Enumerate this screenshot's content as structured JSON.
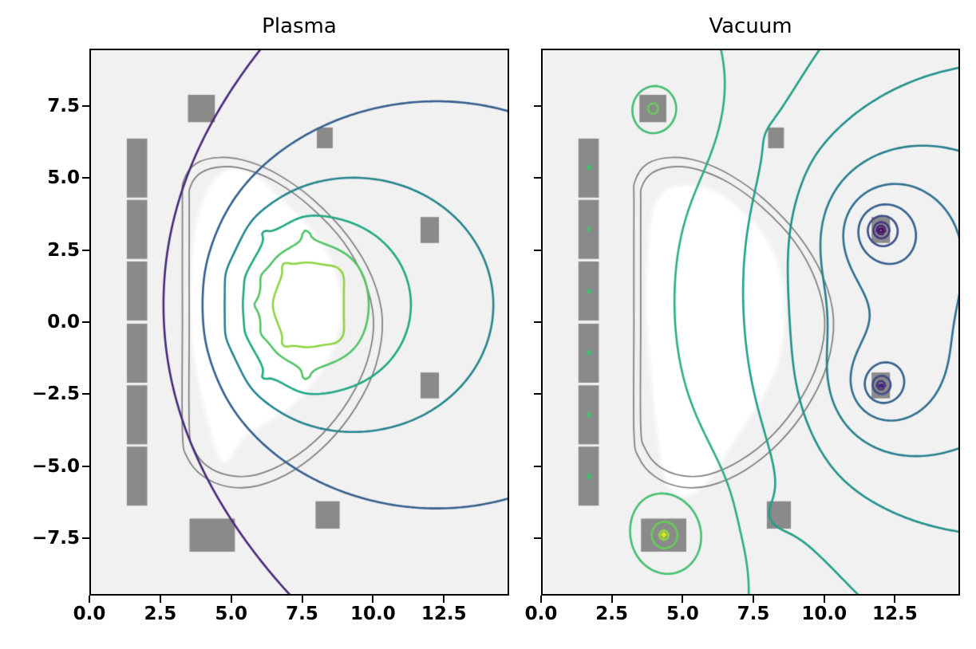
{
  "figure": {
    "background": "#ffffff"
  },
  "chart_data": {
    "type": "contour",
    "colormap": "viridis",
    "xlim": [
      0,
      14.8
    ],
    "ylim": [
      -9.5,
      9.5
    ],
    "grid": true,
    "legend": "none",
    "x_tick_values": [
      0,
      2.5,
      5,
      7.5,
      10,
      12.5
    ],
    "x_tick_labels": [
      "0.0",
      "2.5",
      "5.0",
      "7.5",
      "10.0",
      "12.5"
    ],
    "y_tick_values": [
      7.5,
      5,
      2.5,
      0,
      -2.5,
      -5,
      -7.5
    ],
    "y_tick_labels": [
      "7.5",
      "5.0",
      "2.5",
      "0.0",
      "−2.5",
      "−5.0",
      "−7.5"
    ],
    "panels": [
      {
        "title": "Plasma",
        "field": "plasma",
        "level_fractions": [
          0.12,
          0.3,
          0.45,
          0.6,
          0.73,
          0.83
        ],
        "y_tick_labels_shown": true
      },
      {
        "title": "Vacuum",
        "field": "vacuum",
        "level_count": 15,
        "y_tick_labels_shown": false
      }
    ],
    "machine": {
      "solenoid_segments": [
        {
          "r": 1.68,
          "z": 5.35,
          "w": 0.72,
          "h": 2.05
        },
        {
          "r": 1.68,
          "z": 3.22,
          "w": 0.72,
          "h": 2.05
        },
        {
          "r": 1.68,
          "z": 1.08,
          "w": 0.72,
          "h": 2.05
        },
        {
          "r": 1.68,
          "z": -1.08,
          "w": 0.72,
          "h": 2.05
        },
        {
          "r": 1.68,
          "z": -3.22,
          "w": 0.72,
          "h": 2.05
        },
        {
          "r": 1.68,
          "z": -5.35,
          "w": 0.72,
          "h": 2.05
        }
      ],
      "pf_coils": [
        {
          "name": "upper-left",
          "r": 3.95,
          "z": 7.42,
          "w": 0.95,
          "h": 0.95
        },
        {
          "name": "upper-mid",
          "r": 8.3,
          "z": 6.4,
          "w": 0.56,
          "h": 0.72
        },
        {
          "name": "upper-right",
          "r": 12.0,
          "z": 3.2,
          "w": 0.65,
          "h": 0.9
        },
        {
          "name": "lower-right",
          "r": 12.0,
          "z": -2.2,
          "w": 0.65,
          "h": 0.9
        },
        {
          "name": "lower-mid",
          "r": 8.4,
          "z": -6.7,
          "w": 0.85,
          "h": 0.95
        },
        {
          "name": "lower-left",
          "r": 4.33,
          "z": -7.4,
          "w": 1.6,
          "h": 1.15
        }
      ],
      "wall_outer": [
        [
          3.28,
          4.1
        ],
        [
          3.32,
          4.9
        ],
        [
          3.75,
          5.5
        ],
        [
          4.6,
          5.72
        ],
        [
          5.6,
          5.58
        ],
        [
          6.7,
          5.1
        ],
        [
          7.9,
          4.25
        ],
        [
          9.1,
          3.0
        ],
        [
          9.95,
          1.6
        ],
        [
          10.33,
          0.1
        ],
        [
          10.1,
          -1.5
        ],
        [
          9.4,
          -2.95
        ],
        [
          8.4,
          -4.2
        ],
        [
          7.2,
          -5.15
        ],
        [
          5.95,
          -5.68
        ],
        [
          4.9,
          -5.72
        ],
        [
          4.0,
          -5.35
        ],
        [
          3.45,
          -4.7
        ],
        [
          3.28,
          -3.8
        ],
        [
          3.28,
          0.0
        ]
      ],
      "wall_inner": [
        [
          3.52,
          3.95
        ],
        [
          3.56,
          4.7
        ],
        [
          3.95,
          5.2
        ],
        [
          4.7,
          5.4
        ],
        [
          5.6,
          5.28
        ],
        [
          6.65,
          4.83
        ],
        [
          7.8,
          4.0
        ],
        [
          8.95,
          2.8
        ],
        [
          9.7,
          1.45
        ],
        [
          10.02,
          0.05
        ],
        [
          9.8,
          -1.35
        ],
        [
          9.15,
          -2.7
        ],
        [
          8.2,
          -3.9
        ],
        [
          7.05,
          -4.8
        ],
        [
          5.9,
          -5.3
        ],
        [
          4.95,
          -5.33
        ],
        [
          4.15,
          -5.0
        ],
        [
          3.68,
          -4.4
        ],
        [
          3.52,
          -3.6
        ],
        [
          3.52,
          0.0
        ]
      ]
    },
    "vacuum_currents": {
      "solenoid": 60,
      "upper-left": 70,
      "upper-mid": -6,
      "upper-right": -55,
      "lower-right": -45,
      "lower-mid": -14,
      "lower-left": 90
    },
    "plasma_axis": [
      6.9,
      0.6
    ],
    "plasma_filaments": [
      [
        6.9,
        0.6,
        1.5
      ],
      [
        7.9,
        0.6,
        1
      ],
      [
        7.607,
        1.555,
        1
      ],
      [
        6.9,
        1.95,
        1
      ],
      [
        6.193,
        1.555,
        1
      ],
      [
        5.9,
        0.6,
        1
      ],
      [
        6.193,
        -0.355,
        1
      ],
      [
        6.9,
        -0.75,
        1
      ],
      [
        7.607,
        -0.355,
        1
      ],
      [
        8.656,
        1.634,
        1
      ],
      [
        7.628,
        3.095,
        1
      ],
      [
        6.172,
        3.095,
        1
      ],
      [
        5.144,
        1.634,
        1
      ],
      [
        5.144,
        -0.434,
        1
      ],
      [
        6.172,
        -1.895,
        1
      ],
      [
        7.628,
        -1.895,
        1
      ],
      [
        8.656,
        -0.434,
        1
      ]
    ],
    "plasma_region_outline": {
      "plasma_panel": [
        [
          3.62,
          0.3
        ],
        [
          3.66,
          2.2
        ],
        [
          3.95,
          3.9
        ],
        [
          4.5,
          4.95
        ],
        [
          5.2,
          5.3
        ],
        [
          5.9,
          5.0
        ],
        [
          6.6,
          4.35
        ],
        [
          7.5,
          3.5
        ],
        [
          8.3,
          2.45
        ],
        [
          8.75,
          1.3
        ],
        [
          8.82,
          0.2
        ],
        [
          8.5,
          -1.0
        ],
        [
          7.9,
          -2.0
        ],
        [
          7.1,
          -2.85
        ],
        [
          6.3,
          -3.4
        ],
        [
          5.6,
          -3.8
        ],
        [
          5.15,
          -4.3
        ],
        [
          4.8,
          -4.85
        ],
        [
          4.55,
          -4.5
        ],
        [
          4.2,
          -3.3
        ],
        [
          3.85,
          -1.8
        ],
        [
          3.68,
          -0.7
        ]
      ],
      "vacuum_panel": [
        [
          3.78,
          0.3
        ],
        [
          3.82,
          2.3
        ],
        [
          4.0,
          3.8
        ],
        [
          4.45,
          4.55
        ],
        [
          5.3,
          4.68
        ],
        [
          6.3,
          4.42
        ],
        [
          7.0,
          3.85
        ],
        [
          7.7,
          3.15
        ],
        [
          8.2,
          2.3
        ],
        [
          8.5,
          1.2
        ],
        [
          8.55,
          0.0
        ],
        [
          8.35,
          -1.3
        ],
        [
          7.95,
          -2.3
        ],
        [
          7.45,
          -3.1
        ],
        [
          6.85,
          -4.0
        ],
        [
          6.25,
          -4.9
        ],
        [
          5.65,
          -5.7
        ],
        [
          5.0,
          -6.0
        ],
        [
          4.5,
          -5.6
        ],
        [
          4.25,
          -4.5
        ],
        [
          4.05,
          -3.0
        ],
        [
          3.9,
          -1.4
        ]
      ]
    },
    "colors": {
      "plot_background": "#f1f1f1",
      "coil": "#8a8a8a",
      "wall": "#7f7f7f",
      "plasma_region": "#ffffff",
      "frame": "#000000",
      "tick_label": "#000000",
      "viridis_anchors": [
        "#440154",
        "#482475",
        "#414487",
        "#355f8d",
        "#2a788e",
        "#21918c",
        "#22a884",
        "#44bf70",
        "#7ad151",
        "#bddf26",
        "#fde725"
      ]
    }
  }
}
